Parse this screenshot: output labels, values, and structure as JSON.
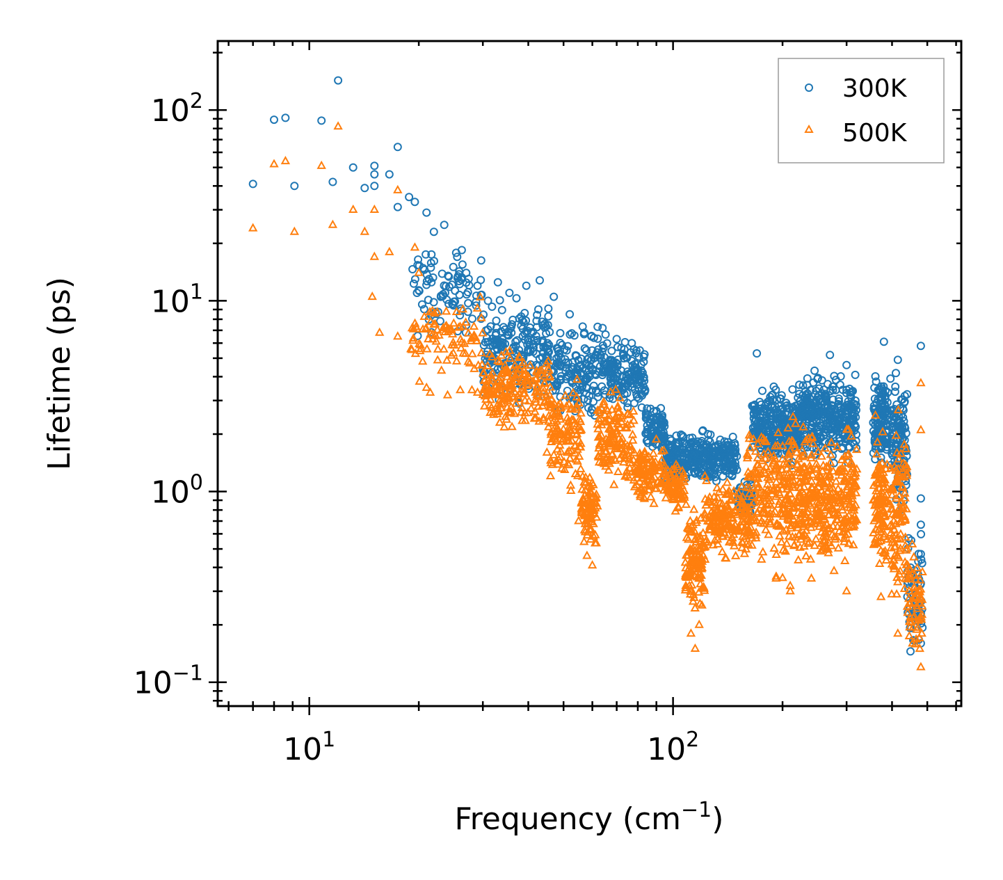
{
  "chart_data": {
    "type": "scatter",
    "title": "",
    "xlabel": "Frequency (cm",
    "xlabel_sup": "−1",
    "xlabel_suffix": ")",
    "ylabel": "Lifetime (ps)",
    "xscale": "log",
    "yscale": "log",
    "xlim": [
      5.6,
      620
    ],
    "ylim": [
      0.075,
      230
    ],
    "x_ticks": [
      {
        "value": 10,
        "base": "10",
        "exp": "1"
      },
      {
        "value": 100,
        "base": "10",
        "exp": "2"
      }
    ],
    "y_ticks": [
      {
        "value": 0.1,
        "base": "10",
        "exp": "−1"
      },
      {
        "value": 1,
        "base": "10",
        "exp": "0"
      },
      {
        "value": 10,
        "base": "10",
        "exp": "1"
      },
      {
        "value": 100,
        "base": "10",
        "exp": "2"
      }
    ],
    "legend": {
      "position": "top-right"
    },
    "series": [
      {
        "name": "300K",
        "marker": "circle",
        "color": "#1f77b4",
        "explicit_points": [
          [
            7.0,
            41
          ],
          [
            8.0,
            89
          ],
          [
            8.6,
            91
          ],
          [
            9.1,
            40
          ],
          [
            10.8,
            88
          ],
          [
            11.6,
            42
          ],
          [
            12.0,
            143
          ],
          [
            13.2,
            50
          ],
          [
            14.2,
            39
          ],
          [
            15.1,
            51
          ],
          [
            15.1,
            46
          ],
          [
            15.1,
            40
          ],
          [
            17.5,
            64
          ],
          [
            16.6,
            46
          ],
          [
            17.5,
            31
          ],
          [
            18.8,
            35
          ],
          [
            19.5,
            33
          ],
          [
            21.0,
            29
          ],
          [
            22.0,
            23
          ],
          [
            23.5,
            25
          ],
          [
            25.5,
            17
          ],
          [
            27.0,
            14
          ],
          [
            29.0,
            12
          ],
          [
            31.0,
            10
          ],
          [
            33.0,
            12.5
          ],
          [
            35.5,
            11
          ],
          [
            39.5,
            12
          ],
          [
            43.0,
            12.8
          ],
          [
            47.0,
            10.5
          ],
          [
            52.0,
            8.5
          ],
          [
            57.0,
            6.8
          ],
          [
            64.0,
            7.2
          ],
          [
            70.0,
            6.3
          ],
          [
            77.0,
            6.0
          ],
          [
            81.0,
            5.5
          ],
          [
            170,
            5.3
          ],
          [
            245,
            4.3
          ],
          [
            270,
            5.2
          ],
          [
            300,
            4.6
          ],
          [
            380,
            6.1
          ],
          [
            415,
            4.9
          ],
          [
            480,
            5.8
          ],
          [
            480,
            0.92
          ],
          [
            480,
            0.67
          ],
          [
            480,
            0.47
          ],
          [
            480,
            0.33
          ],
          [
            480,
            0.23
          ],
          [
            480,
            0.16
          ]
        ],
        "bands": [
          {
            "x": [
              19,
              30
            ],
            "y": [
              5.5,
              22
            ],
            "n": 90
          },
          {
            "x": [
              30,
              46
            ],
            "y": [
              2.6,
              12
            ],
            "n": 200
          },
          {
            "x": [
              46,
              66
            ],
            "y": [
              2.2,
              8.5
            ],
            "n": 170
          },
          {
            "x": [
              66,
              84
            ],
            "y": [
              2.4,
              6.5
            ],
            "n": 140
          },
          {
            "x": [
              84,
              95
            ],
            "y": [
              1.4,
              3.0
            ],
            "n": 90
          },
          {
            "x": [
              95,
              150
            ],
            "y": [
              1.0,
              2.2
            ],
            "n": 330
          },
          {
            "x": [
              150,
              165
            ],
            "y": [
              0.7,
              1.3
            ],
            "n": 50
          },
          {
            "x": [
              165,
              220
            ],
            "y": [
              1.2,
              4.0
            ],
            "n": 260
          },
          {
            "x": [
              220,
              320
            ],
            "y": [
              1.3,
              4.6
            ],
            "n": 360
          },
          {
            "x": [
              355,
              390
            ],
            "y": [
              1.2,
              5.0
            ],
            "n": 120
          },
          {
            "x": [
              395,
              440
            ],
            "y": [
              0.6,
              4.8
            ],
            "n": 120
          },
          {
            "x": [
              440,
              485
            ],
            "y": [
              0.12,
              0.7
            ],
            "n": 60
          }
        ]
      },
      {
        "name": "500K",
        "marker": "triangle",
        "color": "#ff7f0e",
        "explicit_points": [
          [
            7.0,
            24
          ],
          [
            8.0,
            52
          ],
          [
            8.6,
            54
          ],
          [
            9.1,
            23
          ],
          [
            10.8,
            51
          ],
          [
            11.6,
            25
          ],
          [
            12.0,
            82
          ],
          [
            13.2,
            30
          ],
          [
            14.2,
            23
          ],
          [
            15.1,
            30
          ],
          [
            15.1,
            17
          ],
          [
            14.9,
            10.5
          ],
          [
            15.6,
            6.8
          ],
          [
            16.6,
            18
          ],
          [
            17.5,
            38
          ],
          [
            17.5,
            6.5
          ],
          [
            19.5,
            19
          ],
          [
            20.0,
            14
          ],
          [
            20.5,
            4.8
          ],
          [
            21.0,
            3.5
          ],
          [
            21.5,
            3.3
          ],
          [
            22.0,
            7.5
          ],
          [
            24.0,
            3.2
          ],
          [
            26.0,
            3.4
          ],
          [
            28.0,
            3.4
          ],
          [
            29.0,
            3.3
          ],
          [
            45.0,
            1.6
          ],
          [
            47.0,
            1.55
          ],
          [
            55.0,
            0.7
          ],
          [
            58.0,
            0.46
          ],
          [
            60.0,
            0.41
          ],
          [
            112,
            0.18
          ],
          [
            115,
            0.15
          ],
          [
            118,
            0.2
          ],
          [
            192,
            0.35
          ],
          [
            210,
            0.32
          ],
          [
            210,
            0.3
          ],
          [
            240,
            0.35
          ],
          [
            300,
            0.3
          ],
          [
            373,
            0.28
          ],
          [
            415,
            0.18
          ],
          [
            480,
            3.7
          ],
          [
            480,
            2.1
          ],
          [
            480,
            0.12
          ]
        ],
        "bands": [
          {
            "x": [
              19,
              30
            ],
            "y": [
              3.3,
              12
            ],
            "n": 90
          },
          {
            "x": [
              30,
              46
            ],
            "y": [
              1.8,
              6.5
            ],
            "n": 200
          },
          {
            "x": [
              46,
              56
            ],
            "y": [
              0.9,
              4.5
            ],
            "n": 120
          },
          {
            "x": [
              56,
              62
            ],
            "y": [
              0.42,
              1.5
            ],
            "n": 90
          },
          {
            "x": [
              62,
              78
            ],
            "y": [
              0.95,
              3.8
            ],
            "n": 140
          },
          {
            "x": [
              78,
              95
            ],
            "y": [
              0.75,
              2.0
            ],
            "n": 110
          },
          {
            "x": [
              95,
              108
            ],
            "y": [
              0.75,
              1.5
            ],
            "n": 80
          },
          {
            "x": [
              108,
              122
            ],
            "y": [
              0.2,
              0.95
            ],
            "n": 120
          },
          {
            "x": [
              122,
              160
            ],
            "y": [
              0.4,
              1.3
            ],
            "n": 180
          },
          {
            "x": [
              160,
              220
            ],
            "y": [
              0.33,
              2.8
            ],
            "n": 260
          },
          {
            "x": [
              220,
              320
            ],
            "y": [
              0.32,
              2.6
            ],
            "n": 360
          },
          {
            "x": [
              355,
              390
            ],
            "y": [
              0.3,
              2.6
            ],
            "n": 110
          },
          {
            "x": [
              395,
              440
            ],
            "y": [
              0.2,
              2.8
            ],
            "n": 110
          },
          {
            "x": [
              440,
              485
            ],
            "y": [
              0.11,
              0.7
            ],
            "n": 60
          }
        ]
      }
    ]
  }
}
